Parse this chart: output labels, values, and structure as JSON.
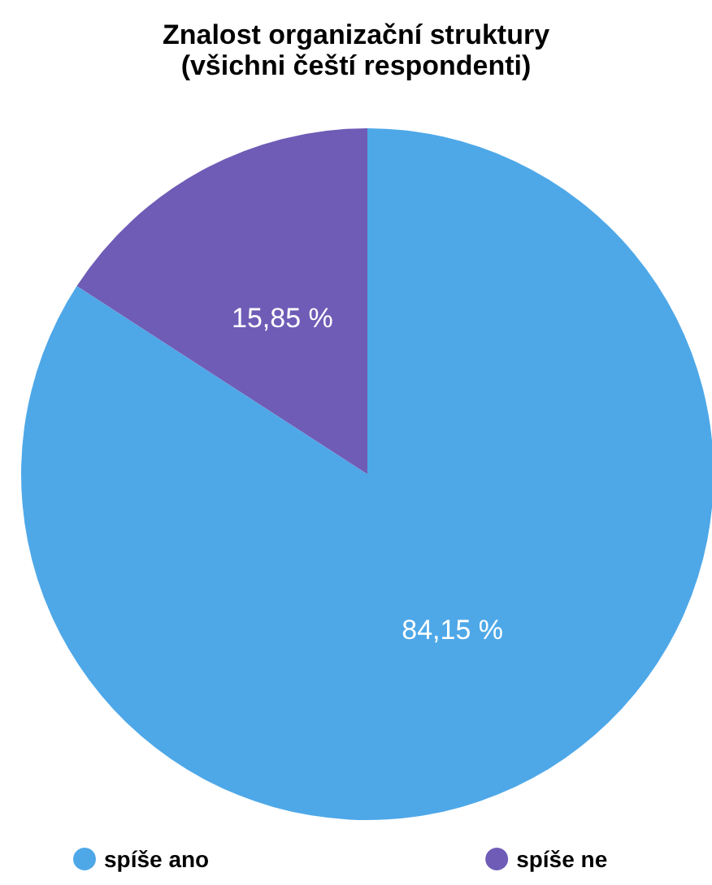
{
  "chart_data": {
    "type": "pie",
    "title": "Znalost organizační struktury",
    "subtitle": "(všichni čeští respondenti)",
    "categories": [
      "spíše ano",
      "spíše ne"
    ],
    "values": [
      84.15,
      15.85
    ],
    "colors": [
      "#4ea8e8",
      "#6e5cb6"
    ],
    "value_labels": [
      "84,15 %",
      "15,85 %"
    ],
    "legend": "bottom"
  }
}
